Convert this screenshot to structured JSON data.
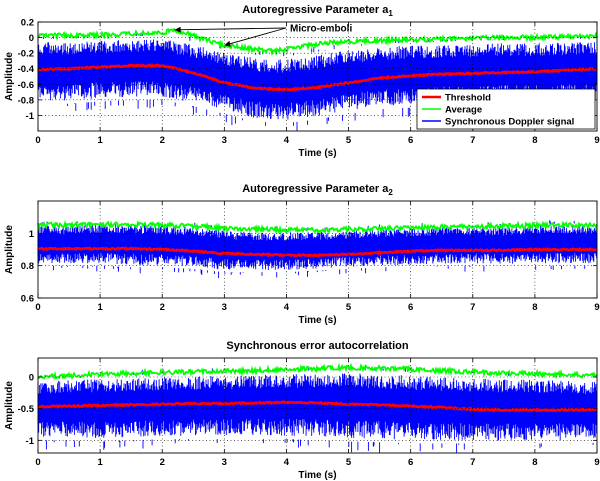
{
  "chart_data": [
    {
      "type": "line",
      "title": "Autoregressive Parameter a",
      "title_subscript": "1",
      "xlabel": "Time (s)",
      "ylabel": "Amplitude",
      "xlim": [
        0,
        9
      ],
      "ylim": [
        -1.2,
        0.2
      ],
      "xticks": [
        "0",
        "1",
        "2",
        "3",
        "4",
        "5",
        "6",
        "7",
        "8",
        "9"
      ],
      "yticks": [
        "-1",
        "-0.8",
        "-0.6",
        "-0.4",
        "-0.2",
        "0",
        "0.2"
      ],
      "ytick_values": [
        -1,
        -0.8,
        -0.6,
        -0.4,
        -0.2,
        0,
        0.2
      ],
      "grid": true,
      "legend_position": "bottom-right",
      "annotation": "Micro-emboli",
      "annotation_targets": [
        [
          2.2,
          0.1
        ],
        [
          3.0,
          -0.1
        ]
      ],
      "series": [
        {
          "name": "Threshold",
          "color": "#ff0000",
          "x": [
            0,
            0.5,
            1,
            1.5,
            2,
            2.5,
            3,
            3.5,
            4,
            4.5,
            5,
            5.5,
            6,
            6.5,
            7,
            7.5,
            8,
            8.5,
            9
          ],
          "y": [
            -0.41,
            -0.4,
            -0.38,
            -0.36,
            -0.36,
            -0.45,
            -0.58,
            -0.65,
            -0.67,
            -0.64,
            -0.58,
            -0.52,
            -0.49,
            -0.47,
            -0.46,
            -0.45,
            -0.44,
            -0.42,
            -0.4
          ]
        },
        {
          "name": "Average",
          "color": "#00ff00",
          "x": [
            0,
            0.5,
            1,
            1.5,
            2,
            2.2,
            2.5,
            3,
            3.5,
            3.8,
            4,
            4.5,
            5,
            5.5,
            6,
            6.5,
            7,
            7.5,
            8,
            8.5,
            9
          ],
          "y": [
            0.02,
            0.03,
            0.03,
            0.05,
            0.06,
            0.1,
            0.02,
            -0.1,
            -0.15,
            -0.18,
            -0.15,
            -0.08,
            -0.05,
            -0.04,
            -0.03,
            -0.02,
            -0.01,
            0.0,
            0.0,
            0.01,
            0.02
          ]
        },
        {
          "name": "Synchronous Doppler signal",
          "color": "#0000ff",
          "band_x": [
            0,
            0.5,
            1,
            1.5,
            2,
            2.5,
            3,
            3.5,
            4,
            4.5,
            5,
            5.5,
            6,
            6.5,
            7,
            7.5,
            8,
            8.5,
            9
          ],
          "band_upper": [
            -0.02,
            -0.01,
            0.0,
            0.02,
            0.02,
            -0.05,
            -0.15,
            -0.22,
            -0.24,
            -0.18,
            -0.12,
            -0.08,
            -0.06,
            -0.05,
            -0.04,
            -0.03,
            -0.03,
            -0.02,
            -0.01
          ],
          "band_lower": [
            -0.85,
            -0.85,
            -0.82,
            -0.8,
            -0.8,
            -0.88,
            -0.98,
            -1.08,
            -1.1,
            -1.05,
            -0.98,
            -0.92,
            -0.9,
            -0.88,
            -0.88,
            -0.86,
            -0.86,
            -0.85,
            -0.84
          ]
        }
      ]
    },
    {
      "type": "line",
      "title": "Autoregressive Parameter a",
      "title_subscript": "2",
      "xlabel": "Time (s)",
      "ylabel": "Amplitude",
      "xlim": [
        0,
        9
      ],
      "ylim": [
        0.6,
        1.2
      ],
      "xticks": [
        "0",
        "1",
        "2",
        "3",
        "4",
        "5",
        "6",
        "7",
        "8",
        "9"
      ],
      "yticks": [
        "0.6",
        "0.8",
        "1"
      ],
      "ytick_values": [
        0.6,
        0.8,
        1.0
      ],
      "grid": true,
      "series": [
        {
          "name": "Threshold",
          "color": "#ff0000",
          "x": [
            0,
            0.5,
            1,
            1.5,
            2,
            2.5,
            3,
            3.5,
            4,
            4.5,
            5,
            5.5,
            6,
            6.5,
            7,
            7.5,
            8,
            8.5,
            9
          ],
          "y": [
            0.905,
            0.905,
            0.905,
            0.905,
            0.9,
            0.89,
            0.875,
            0.87,
            0.865,
            0.865,
            0.87,
            0.88,
            0.89,
            0.895,
            0.895,
            0.895,
            0.9,
            0.9,
            0.9
          ]
        },
        {
          "name": "Average",
          "color": "#00ff00",
          "x": [
            0,
            0.5,
            1,
            1.5,
            2,
            2.5,
            3,
            3.5,
            4,
            4.5,
            5,
            5.5,
            6,
            6.5,
            7,
            7.5,
            8,
            8.5,
            9
          ],
          "y": [
            1.05,
            1.05,
            1.055,
            1.055,
            1.05,
            1.045,
            1.03,
            1.025,
            1.02,
            1.02,
            1.025,
            1.03,
            1.035,
            1.04,
            1.04,
            1.045,
            1.05,
            1.05,
            1.05
          ]
        },
        {
          "name": "Synchronous Doppler signal",
          "color": "#0000ff",
          "band_x": [
            0,
            0.5,
            1,
            1.5,
            2,
            2.5,
            3,
            3.5,
            4,
            4.5,
            5,
            5.5,
            6,
            6.5,
            7,
            7.5,
            8,
            8.5,
            9
          ],
          "band_upper": [
            1.06,
            1.06,
            1.07,
            1.07,
            1.06,
            1.05,
            1.03,
            1.02,
            1.02,
            1.02,
            1.03,
            1.04,
            1.04,
            1.05,
            1.05,
            1.05,
            1.06,
            1.06,
            1.06
          ],
          "band_lower": [
            0.8,
            0.8,
            0.8,
            0.79,
            0.79,
            0.78,
            0.76,
            0.76,
            0.76,
            0.77,
            0.78,
            0.79,
            0.79,
            0.8,
            0.8,
            0.8,
            0.8,
            0.8,
            0.8
          ]
        }
      ]
    },
    {
      "type": "line",
      "title": "Synchronous error autocorrelation",
      "xlabel": "Time (s)",
      "ylabel": "Amplitude",
      "xlim": [
        0,
        9
      ],
      "ylim": [
        -1.2,
        0.3
      ],
      "xticks": [
        "0",
        "1",
        "2",
        "3",
        "4",
        "5",
        "6",
        "7",
        "8",
        "9"
      ],
      "yticks": [
        "-1",
        "-0.5",
        "0"
      ],
      "ytick_values": [
        -1,
        -0.5,
        0
      ],
      "grid": true,
      "series": [
        {
          "name": "Threshold",
          "color": "#ff0000",
          "x": [
            0,
            0.5,
            1,
            1.5,
            2,
            2.5,
            3,
            3.5,
            4,
            4.5,
            5,
            5.5,
            6,
            6.5,
            7,
            7.5,
            8,
            8.5,
            9
          ],
          "y": [
            -0.47,
            -0.46,
            -0.45,
            -0.44,
            -0.43,
            -0.42,
            -0.42,
            -0.41,
            -0.4,
            -0.41,
            -0.43,
            -0.44,
            -0.46,
            -0.48,
            -0.51,
            -0.52,
            -0.52,
            -0.52,
            -0.51
          ]
        },
        {
          "name": "Average",
          "color": "#00ff00",
          "x": [
            0,
            0.5,
            1,
            1.5,
            2,
            2.5,
            3,
            3.5,
            4,
            4.5,
            5,
            5.5,
            6,
            6.5,
            7,
            7.5,
            8,
            8.5,
            9
          ],
          "y": [
            0.0,
            0.02,
            0.05,
            0.06,
            0.07,
            0.08,
            0.09,
            0.1,
            0.12,
            0.13,
            0.15,
            0.14,
            0.12,
            0.1,
            0.08,
            0.06,
            0.05,
            0.04,
            0.02
          ]
        },
        {
          "name": "Synchronous Doppler signal",
          "color": "#0000ff",
          "band_x": [
            0,
            0.5,
            1,
            1.5,
            2,
            2.5,
            3,
            3.5,
            4,
            4.5,
            5,
            5.5,
            6,
            6.5,
            7,
            7.5,
            8,
            8.5,
            9
          ],
          "band_upper": [
            -0.02,
            0.0,
            0.02,
            0.03,
            0.05,
            0.06,
            0.07,
            0.08,
            0.1,
            0.1,
            0.12,
            0.1,
            0.08,
            0.05,
            0.03,
            0.02,
            0.02,
            0.0,
            -0.02
          ],
          "band_lower": [
            -1.0,
            -1.0,
            -1.02,
            -1.0,
            -0.98,
            -0.98,
            -0.98,
            -0.98,
            -0.98,
            -1.0,
            -1.02,
            -1.03,
            -1.05,
            -1.05,
            -1.05,
            -1.06,
            -1.05,
            -1.05,
            -1.04
          ]
        }
      ]
    }
  ]
}
